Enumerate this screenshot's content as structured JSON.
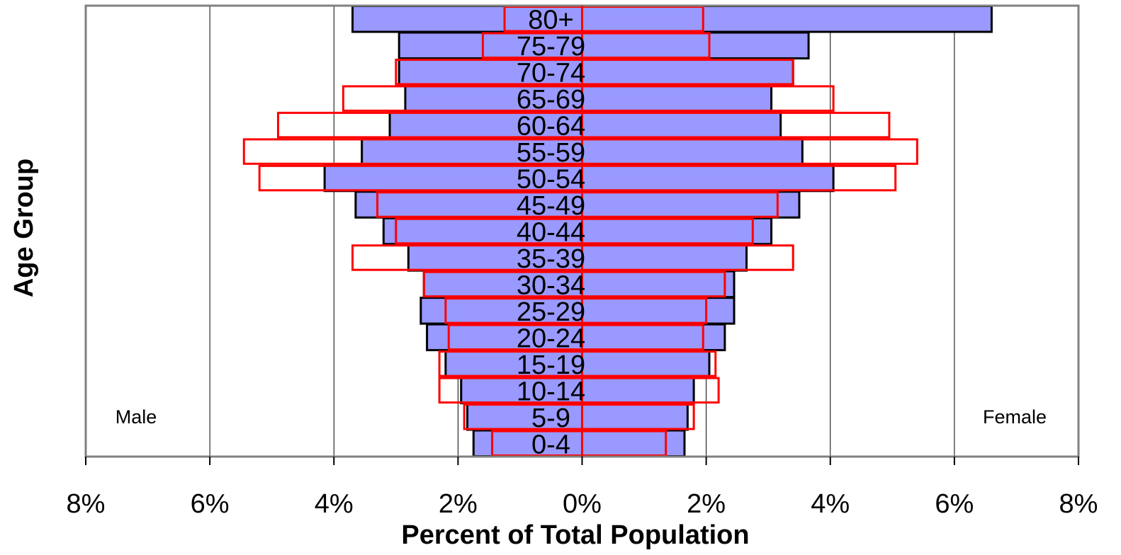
{
  "chart_data": {
    "type": "bar",
    "orientation": "horizontal-population-pyramid",
    "title": "",
    "xlabel": "Percent of Total Population",
    "ylabel": "Age Group",
    "xlim": [
      -8,
      8
    ],
    "x_ticks": [
      "8%",
      "6%",
      "4%",
      "2%",
      "0%",
      "2%",
      "4%",
      "6%",
      "8%"
    ],
    "side_labels": {
      "left": "Male",
      "right": "Female"
    },
    "grid": "vertical",
    "categories": [
      "0-4",
      "5-9",
      "10-14",
      "15-19",
      "20-24",
      "25-29",
      "30-34",
      "35-39",
      "40-44",
      "45-49",
      "50-54",
      "55-59",
      "60-64",
      "65-69",
      "70-74",
      "75-79",
      "80+"
    ],
    "series": [
      {
        "style": "filled",
        "color": "#9999ff",
        "stroke": "#000000",
        "male": [
          1.75,
          1.85,
          1.95,
          2.2,
          2.5,
          2.6,
          2.55,
          2.8,
          3.2,
          3.65,
          4.15,
          3.55,
          3.1,
          2.85,
          2.95,
          2.95,
          3.7
        ],
        "female": [
          1.65,
          1.7,
          1.8,
          2.05,
          2.3,
          2.45,
          2.45,
          2.65,
          3.05,
          3.5,
          4.05,
          3.55,
          3.2,
          3.05,
          3.4,
          3.65,
          6.6
        ]
      },
      {
        "style": "outline",
        "color": "#ff0000",
        "male": [
          1.45,
          1.9,
          2.3,
          2.3,
          2.15,
          2.2,
          2.55,
          3.7,
          3.0,
          3.3,
          5.2,
          5.45,
          4.9,
          3.85,
          3.0,
          1.6,
          1.25
        ],
        "female": [
          1.35,
          1.8,
          2.2,
          2.15,
          1.95,
          2.0,
          2.3,
          3.4,
          2.75,
          3.15,
          5.05,
          5.4,
          4.95,
          4.05,
          3.4,
          2.05,
          1.95
        ]
      }
    ]
  }
}
